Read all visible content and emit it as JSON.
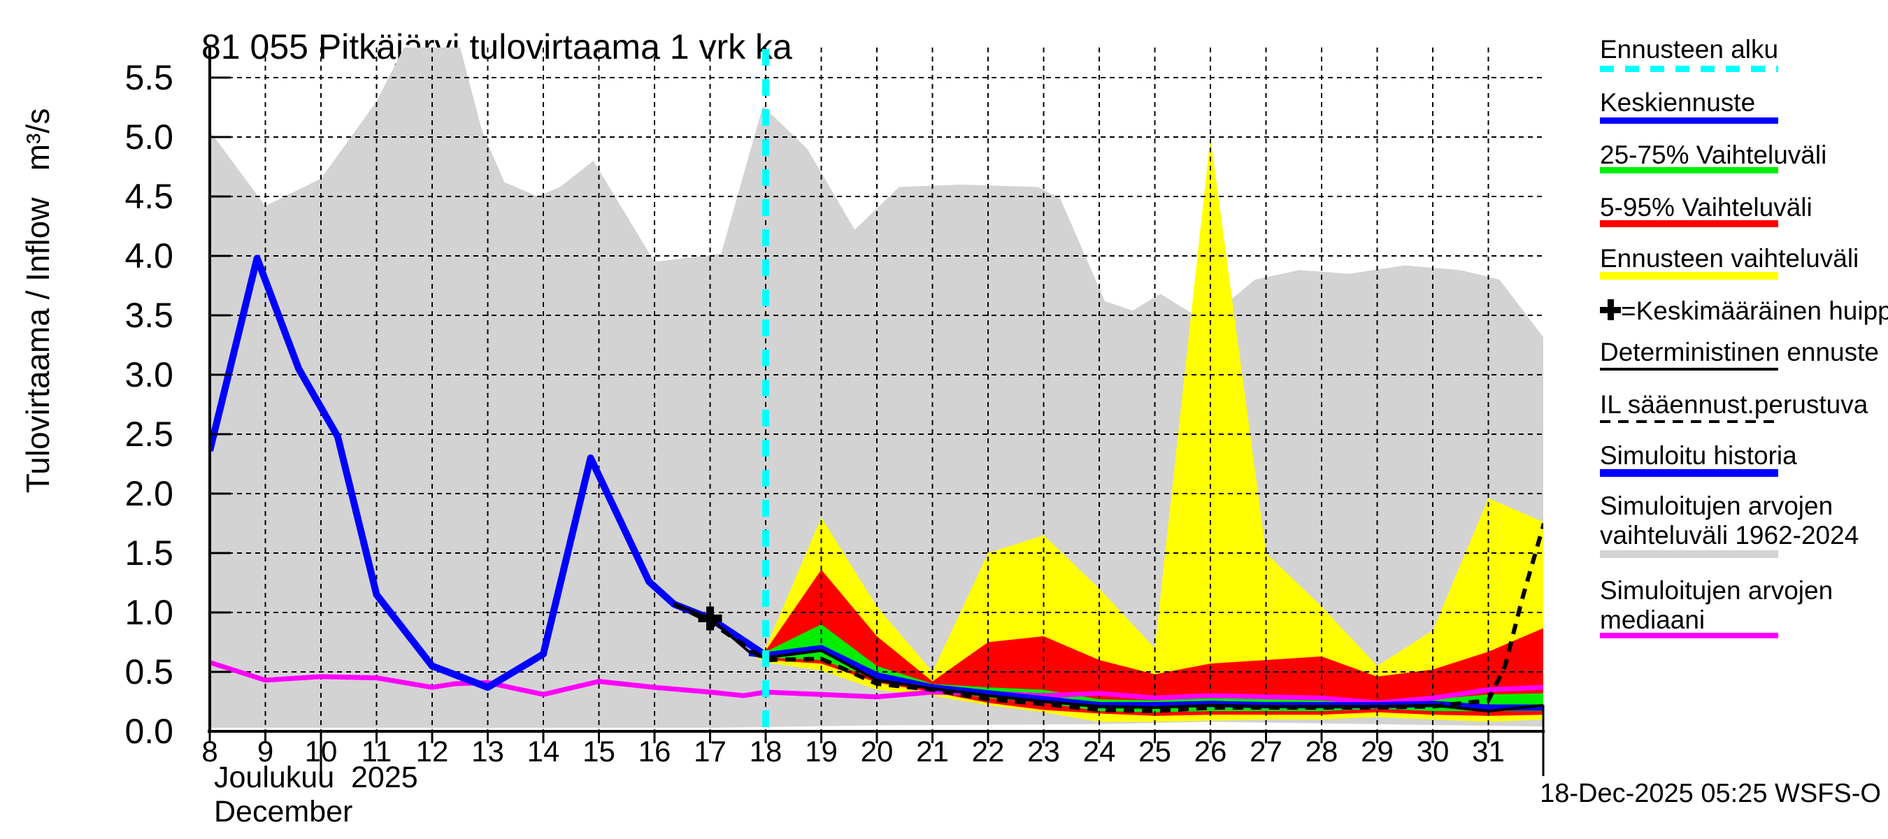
{
  "title": "81 055 Pitkäjärvi tulovirtaama 1 vrk ka",
  "y_axis": {
    "label": "Tulovirtaama / Inflow   m³/s",
    "tick_labels": [
      "0.0",
      "0.5",
      "1.0",
      "1.5",
      "2.0",
      "2.5",
      "3.0",
      "3.5",
      "4.0",
      "4.5",
      "5.0",
      "5.5"
    ]
  },
  "x_axis": {
    "tick_labels": [
      "8",
      "9",
      "10",
      "11",
      "12",
      "13",
      "14",
      "15",
      "16",
      "17",
      "18",
      "19",
      "20",
      "21",
      "22",
      "23",
      "24",
      "25",
      "26",
      "27",
      "28",
      "29",
      "30",
      "31"
    ],
    "month_fi": "Joulukuu  2025",
    "month_en": "December"
  },
  "footer": {
    "timestamp": "18-Dec-2025 05:25 WSFS-O"
  },
  "colors": {
    "cyan": "#00ffff",
    "blue": "#0000ff",
    "green": "#00ee00",
    "red": "#ff0000",
    "yellow": "#ffff00",
    "magenta": "#ff00ff",
    "gray_band": "#d3d3d3",
    "black": "#000000"
  },
  "legend": [
    {
      "label": "Ennusteen alku",
      "swatch": "cyan-dashed"
    },
    {
      "label": "Keskiennuste",
      "swatch": "blue-line"
    },
    {
      "label": "25-75% Vaihteluväli",
      "swatch": "green-line"
    },
    {
      "label": "5-95% Vaihteluväli",
      "swatch": "red-line"
    },
    {
      "label": "Ennusteen vaihteluväli",
      "swatch": "yellow-line"
    },
    {
      "label": "=Keskimääräinen huippu",
      "swatch": "plus-marker"
    },
    {
      "label": "Deterministinen ennuste",
      "swatch": "black-line"
    },
    {
      "label": "IL sääennust.perustuva",
      "swatch": "black-dashed"
    },
    {
      "label": "Simuloitu historia",
      "swatch": "blue-thick"
    },
    {
      "label": "Simuloitujen arvojen",
      "label2": "vaihteluväli 1962-2024",
      "swatch": "gray-bar"
    },
    {
      "label": "Simuloitujen arvojen",
      "label2": "mediaani",
      "swatch": "magenta-line"
    }
  ],
  "chart_data": {
    "type": "area+line",
    "title": "81 055 Pitkäjärvi tulovirtaama 1 vrk ka",
    "ylabel": "Tulovirtaama / Inflow m³/s",
    "xlabel": "Joulukuu 2025 / December",
    "ylim": [
      0,
      5.75
    ],
    "xlim": [
      8,
      32
    ],
    "y_ticks": [
      0,
      0.5,
      1,
      1.5,
      2,
      2.5,
      3,
      3.5,
      4,
      4.5,
      5,
      5.5
    ],
    "x_ticks": [
      8,
      9,
      10,
      11,
      12,
      13,
      14,
      15,
      16,
      17,
      18,
      19,
      20,
      21,
      22,
      23,
      24,
      25,
      26,
      27,
      28,
      29,
      30,
      31
    ],
    "grid": true,
    "forecast_start_x": 18,
    "average_peak_marker": {
      "x": 17,
      "y": 0.95
    },
    "series": {
      "simulated_range_1962_2024": {
        "x": [
          8,
          9,
          10,
          11,
          11.5,
          12.5,
          12.9,
          13.3,
          13.9,
          14.3,
          14.9,
          16,
          17.2,
          17.95,
          18.75,
          19.6,
          20.4,
          21.5,
          22.9,
          23.3,
          24.1,
          24.6,
          25.1,
          25.9,
          26.8,
          27.6,
          28.5,
          29.5,
          30.5,
          31.2,
          32
        ],
        "upper": [
          5.05,
          4.42,
          4.65,
          5.3,
          5.76,
          5.76,
          5.05,
          4.62,
          4.5,
          4.58,
          4.8,
          3.95,
          4.02,
          5.26,
          4.9,
          4.22,
          4.58,
          4.6,
          4.58,
          4.48,
          3.62,
          3.54,
          3.68,
          3.45,
          3.8,
          3.88,
          3.85,
          3.92,
          3.88,
          3.8,
          3.31
        ],
        "lower_x": [
          8,
          17,
          20,
          24,
          26,
          29,
          32
        ],
        "lower": [
          0.03,
          0.03,
          0.05,
          0.06,
          0.08,
          0.06,
          0.04
        ]
      },
      "simulated_history": {
        "x": [
          8,
          8.85,
          9.6,
          10.3,
          11,
          12,
          13,
          14,
          14.85,
          15.9,
          16.35,
          17,
          18
        ],
        "y": [
          2.36,
          3.98,
          3.05,
          2.48,
          1.15,
          0.55,
          0.37,
          0.65,
          2.3,
          1.26,
          1.07,
          0.95,
          0.64
        ]
      },
      "simulated_median": {
        "x": [
          8,
          9,
          10,
          11,
          12,
          12.4,
          13,
          14,
          15,
          16,
          17,
          17.6,
          18,
          19,
          20,
          21,
          22,
          23,
          24,
          25,
          26,
          27,
          28,
          29,
          30,
          31,
          32
        ],
        "y": [
          0.58,
          0.43,
          0.46,
          0.45,
          0.37,
          0.4,
          0.41,
          0.31,
          0.42,
          0.37,
          0.33,
          0.3,
          0.33,
          0.31,
          0.29,
          0.33,
          0.32,
          0.3,
          0.32,
          0.28,
          0.3,
          0.29,
          0.28,
          0.24,
          0.28,
          0.35,
          0.37
        ]
      },
      "forecast_x": [
        17.7,
        18,
        19,
        20,
        21,
        22,
        23,
        24,
        25,
        26,
        27,
        28,
        29,
        30,
        31,
        32
      ],
      "forecast_range": {
        "upper": [
          0.67,
          0.7,
          1.8,
          1.05,
          0.5,
          1.5,
          1.65,
          1.2,
          0.7,
          5.0,
          1.5,
          1.05,
          0.55,
          0.85,
          1.96,
          1.76
        ],
        "lower": [
          0.65,
          0.58,
          0.51,
          0.35,
          0.3,
          0.22,
          0.16,
          0.08,
          0.08,
          0.09,
          0.1,
          0.1,
          0.12,
          0.1,
          0.08,
          0.1
        ]
      },
      "range_5_95": {
        "upper": [
          0.66,
          0.68,
          1.36,
          0.8,
          0.42,
          0.75,
          0.8,
          0.6,
          0.48,
          0.57,
          0.6,
          0.63,
          0.46,
          0.52,
          0.67,
          0.87
        ],
        "lower": [
          0.655,
          0.6,
          0.57,
          0.41,
          0.33,
          0.24,
          0.18,
          0.15,
          0.13,
          0.14,
          0.14,
          0.14,
          0.16,
          0.14,
          0.13,
          0.14
        ]
      },
      "range_25_75": {
        "upper": [
          0.66,
          0.67,
          0.9,
          0.55,
          0.4,
          0.37,
          0.35,
          0.27,
          0.26,
          0.28,
          0.28,
          0.28,
          0.24,
          0.27,
          0.31,
          0.32
        ],
        "lower": [
          0.655,
          0.62,
          0.6,
          0.44,
          0.35,
          0.28,
          0.24,
          0.17,
          0.16,
          0.17,
          0.17,
          0.17,
          0.19,
          0.17,
          0.17,
          0.17
        ]
      },
      "forecast_median": [
        0.66,
        0.64,
        0.7,
        0.47,
        0.37,
        0.32,
        0.27,
        0.22,
        0.22,
        0.23,
        0.22,
        0.22,
        0.22,
        0.23,
        0.2,
        0.2
      ],
      "deterministic": {
        "x": [
          16.35,
          17,
          17.7,
          18,
          19,
          20,
          21,
          22,
          23,
          24,
          25,
          26,
          27,
          28,
          29,
          30,
          31,
          32
        ],
        "y": [
          1.07,
          0.95,
          0.67,
          0.62,
          0.68,
          0.43,
          0.36,
          0.3,
          0.25,
          0.21,
          0.2,
          0.22,
          0.21,
          0.21,
          0.21,
          0.22,
          0.17,
          0.22
        ]
      },
      "il_weather_based": {
        "x": [
          16.35,
          17,
          18,
          19,
          20,
          21,
          22,
          23,
          24,
          25,
          26,
          27,
          28,
          29,
          30,
          30.8,
          31,
          31.3,
          31.6,
          32
        ],
        "y": [
          1.07,
          0.92,
          0.6,
          0.61,
          0.4,
          0.35,
          0.27,
          0.23,
          0.18,
          0.17,
          0.2,
          0.2,
          0.2,
          0.2,
          0.21,
          0.25,
          0.26,
          0.55,
          1.1,
          1.75
        ]
      }
    }
  }
}
